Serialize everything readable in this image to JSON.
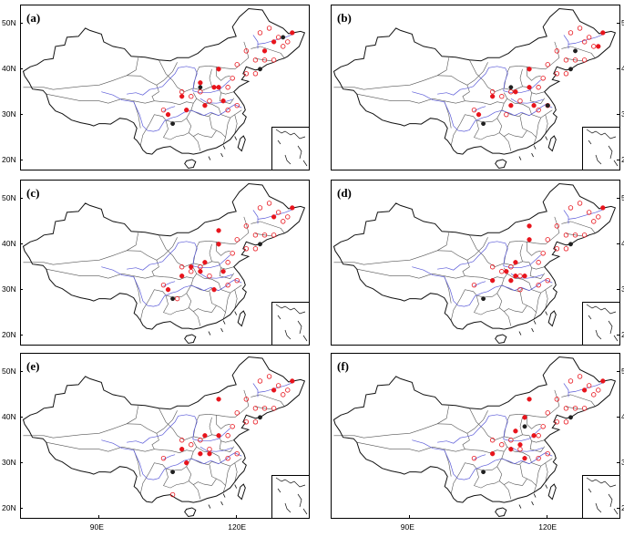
{
  "figure": {
    "panels": [
      {
        "label": "(a)",
        "solid": [
          [
            132,
            48
          ],
          [
            128,
            46
          ],
          [
            126,
            44
          ],
          [
            116,
            40
          ],
          [
            116,
            36
          ],
          [
            112,
            37
          ],
          [
            115,
            36
          ],
          [
            108,
            34
          ],
          [
            113,
            32
          ],
          [
            117,
            33
          ],
          [
            105,
            30
          ],
          [
            109,
            31
          ]
        ],
        "open": [
          [
            125,
            48
          ],
          [
            127,
            49
          ],
          [
            129,
            47
          ],
          [
            130,
            45
          ],
          [
            131,
            46
          ],
          [
            122,
            44
          ],
          [
            124,
            42
          ],
          [
            126,
            42
          ],
          [
            128,
            42
          ],
          [
            120,
            41
          ],
          [
            122,
            39
          ],
          [
            124,
            39
          ],
          [
            119,
            38
          ],
          [
            118,
            36
          ],
          [
            112,
            35
          ],
          [
            110,
            34
          ],
          [
            114,
            33
          ],
          [
            108,
            35
          ],
          [
            104,
            31
          ],
          [
            118,
            31
          ],
          [
            120,
            32
          ]
        ],
        "dark": [
          [
            130,
            47
          ],
          [
            125,
            40
          ],
          [
            112,
            36
          ],
          [
            106,
            28
          ]
        ]
      },
      {
        "label": "(b)",
        "solid": [
          [
            132,
            48
          ],
          [
            131,
            45
          ],
          [
            116,
            40
          ],
          [
            116,
            36
          ],
          [
            113,
            35
          ],
          [
            112,
            32
          ],
          [
            108,
            34
          ],
          [
            105,
            30
          ],
          [
            117,
            32
          ]
        ],
        "open": [
          [
            125,
            48
          ],
          [
            127,
            49
          ],
          [
            129,
            47
          ],
          [
            130,
            45
          ],
          [
            128,
            46
          ],
          [
            122,
            44
          ],
          [
            124,
            42
          ],
          [
            126,
            42
          ],
          [
            128,
            42
          ],
          [
            120,
            41
          ],
          [
            122,
            39
          ],
          [
            124,
            39
          ],
          [
            119,
            38
          ],
          [
            118,
            36
          ],
          [
            112,
            35
          ],
          [
            110,
            34
          ],
          [
            114,
            33
          ],
          [
            108,
            35
          ],
          [
            104,
            31
          ],
          [
            118,
            31
          ],
          [
            120,
            32
          ],
          [
            111,
            30
          ]
        ],
        "dark": [
          [
            126,
            44
          ],
          [
            125,
            40
          ],
          [
            112,
            36
          ],
          [
            106,
            28
          ],
          [
            120,
            32
          ]
        ]
      },
      {
        "label": "(c)",
        "solid": [
          [
            132,
            48
          ],
          [
            128,
            46
          ],
          [
            116,
            43
          ],
          [
            116,
            40
          ],
          [
            113,
            36
          ],
          [
            110,
            35
          ],
          [
            117,
            34
          ],
          [
            112,
            34
          ],
          [
            108,
            33
          ],
          [
            105,
            30
          ],
          [
            115,
            30
          ]
        ],
        "open": [
          [
            125,
            48
          ],
          [
            127,
            49
          ],
          [
            129,
            47
          ],
          [
            130,
            45
          ],
          [
            131,
            46
          ],
          [
            122,
            44
          ],
          [
            124,
            42
          ],
          [
            126,
            42
          ],
          [
            128,
            42
          ],
          [
            120,
            41
          ],
          [
            122,
            39
          ],
          [
            124,
            39
          ],
          [
            119,
            38
          ],
          [
            118,
            36
          ],
          [
            112,
            35
          ],
          [
            110,
            34
          ],
          [
            114,
            33
          ],
          [
            108,
            35
          ],
          [
            104,
            31
          ],
          [
            118,
            31
          ],
          [
            120,
            32
          ],
          [
            107,
            28
          ]
        ],
        "dark": [
          [
            125,
            40
          ],
          [
            106,
            28
          ]
        ]
      },
      {
        "label": "(d)",
        "solid": [
          [
            132,
            48
          ],
          [
            116,
            44
          ],
          [
            116,
            41
          ],
          [
            113,
            36
          ],
          [
            111,
            34
          ],
          [
            115,
            33
          ],
          [
            113,
            33
          ],
          [
            112,
            32
          ],
          [
            108,
            32
          ]
        ],
        "open": [
          [
            125,
            48
          ],
          [
            127,
            49
          ],
          [
            129,
            47
          ],
          [
            130,
            45
          ],
          [
            131,
            46
          ],
          [
            122,
            44
          ],
          [
            124,
            42
          ],
          [
            126,
            42
          ],
          [
            128,
            42
          ],
          [
            120,
            41
          ],
          [
            122,
            39
          ],
          [
            124,
            39
          ],
          [
            119,
            38
          ],
          [
            118,
            36
          ],
          [
            112,
            35
          ],
          [
            110,
            34
          ],
          [
            114,
            33
          ],
          [
            108,
            35
          ],
          [
            104,
            31
          ],
          [
            118,
            31
          ],
          [
            120,
            32
          ],
          [
            114,
            30
          ]
        ],
        "dark": [
          [
            125,
            40
          ],
          [
            106,
            28
          ]
        ]
      },
      {
        "label": "(e)",
        "solid": [
          [
            132,
            48
          ],
          [
            128,
            46
          ],
          [
            116,
            44
          ],
          [
            113,
            36
          ],
          [
            116,
            36
          ],
          [
            112,
            32
          ],
          [
            114,
            32
          ],
          [
            108,
            33
          ],
          [
            109,
            30
          ]
        ],
        "open": [
          [
            125,
            48
          ],
          [
            127,
            49
          ],
          [
            129,
            47
          ],
          [
            130,
            45
          ],
          [
            131,
            46
          ],
          [
            122,
            44
          ],
          [
            124,
            42
          ],
          [
            126,
            42
          ],
          [
            128,
            42
          ],
          [
            120,
            41
          ],
          [
            122,
            39
          ],
          [
            124,
            39
          ],
          [
            119,
            38
          ],
          [
            118,
            36
          ],
          [
            112,
            35
          ],
          [
            110,
            34
          ],
          [
            114,
            33
          ],
          [
            108,
            35
          ],
          [
            104,
            31
          ],
          [
            118,
            31
          ],
          [
            120,
            32
          ],
          [
            106,
            23
          ]
        ],
        "dark": [
          [
            125,
            40
          ],
          [
            106,
            28
          ]
        ]
      },
      {
        "label": "(f)",
        "solid": [
          [
            132,
            48
          ],
          [
            128,
            46
          ],
          [
            116,
            44
          ],
          [
            115,
            40
          ],
          [
            113,
            37
          ],
          [
            117,
            36
          ],
          [
            114,
            34
          ],
          [
            112,
            33
          ],
          [
            115,
            31
          ],
          [
            108,
            32
          ]
        ],
        "open": [
          [
            125,
            48
          ],
          [
            127,
            49
          ],
          [
            129,
            47
          ],
          [
            130,
            45
          ],
          [
            131,
            46
          ],
          [
            122,
            44
          ],
          [
            124,
            42
          ],
          [
            126,
            42
          ],
          [
            128,
            42
          ],
          [
            120,
            41
          ],
          [
            122,
            39
          ],
          [
            124,
            39
          ],
          [
            119,
            38
          ],
          [
            118,
            36
          ],
          [
            112,
            35
          ],
          [
            110,
            34
          ],
          [
            114,
            33
          ],
          [
            108,
            35
          ],
          [
            104,
            31
          ],
          [
            118,
            31
          ],
          [
            120,
            32
          ]
        ],
        "dark": [
          [
            125,
            40
          ],
          [
            106,
            28
          ],
          [
            115,
            38
          ]
        ]
      }
    ],
    "lat_ticks": [
      "50N",
      "40N",
      "30N",
      "20N"
    ],
    "lon_ticks": [
      "90E",
      "120E"
    ],
    "colors": {
      "solid": "#e8141c",
      "open": "#e8141c",
      "dark": "#202020",
      "border": "#111111",
      "province": "#555555",
      "river": "#5a5ad8"
    }
  }
}
